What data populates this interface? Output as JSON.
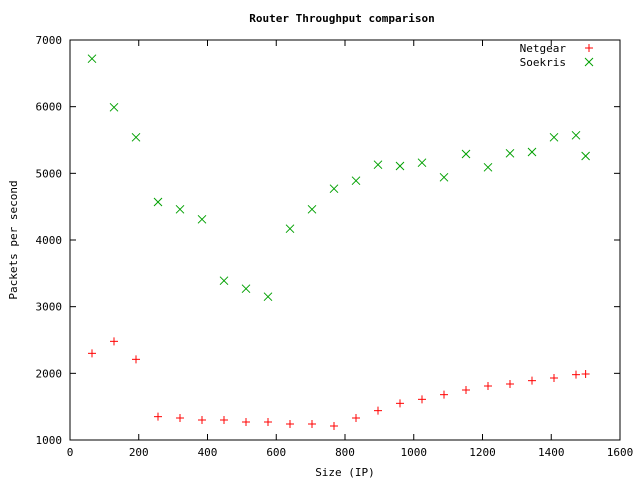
{
  "chart_data": {
    "type": "scatter",
    "title": "Router Throughput comparison",
    "xlabel": "Size (IP)",
    "ylabel": "Packets per second",
    "xlim": [
      0,
      1600
    ],
    "ylim": [
      1000,
      7000
    ],
    "xticks": [
      0,
      200,
      400,
      600,
      800,
      1000,
      1200,
      1400,
      1600
    ],
    "yticks": [
      1000,
      2000,
      3000,
      4000,
      5000,
      6000,
      7000
    ],
    "grid": false,
    "legend_position": "top-right",
    "series": [
      {
        "name": "Netgear",
        "marker": "plus",
        "color": "#ff0000",
        "points": [
          [
            64,
            2300
          ],
          [
            128,
            2480
          ],
          [
            192,
            2210
          ],
          [
            256,
            1350
          ],
          [
            320,
            1330
          ],
          [
            384,
            1300
          ],
          [
            448,
            1300
          ],
          [
            512,
            1270
          ],
          [
            576,
            1270
          ],
          [
            640,
            1240
          ],
          [
            704,
            1240
          ],
          [
            768,
            1210
          ],
          [
            832,
            1330
          ],
          [
            896,
            1440
          ],
          [
            960,
            1550
          ],
          [
            1024,
            1610
          ],
          [
            1088,
            1680
          ],
          [
            1152,
            1750
          ],
          [
            1216,
            1810
          ],
          [
            1280,
            1840
          ],
          [
            1344,
            1890
          ],
          [
            1408,
            1930
          ],
          [
            1472,
            1980
          ],
          [
            1500,
            1990
          ]
        ]
      },
      {
        "name": "Soekris",
        "marker": "cross",
        "color": "#00a000",
        "points": [
          [
            64,
            6720
          ],
          [
            128,
            5990
          ],
          [
            192,
            5540
          ],
          [
            256,
            4570
          ],
          [
            320,
            4460
          ],
          [
            384,
            4310
          ],
          [
            448,
            3390
          ],
          [
            512,
            3270
          ],
          [
            576,
            3150
          ],
          [
            640,
            4170
          ],
          [
            704,
            4460
          ],
          [
            768,
            4770
          ],
          [
            832,
            4890
          ],
          [
            896,
            5130
          ],
          [
            960,
            5110
          ],
          [
            1024,
            5160
          ],
          [
            1088,
            4940
          ],
          [
            1152,
            5290
          ],
          [
            1216,
            5090
          ],
          [
            1280,
            5300
          ],
          [
            1344,
            5320
          ],
          [
            1408,
            5540
          ],
          [
            1472,
            5570
          ],
          [
            1500,
            5260
          ]
        ]
      }
    ]
  }
}
